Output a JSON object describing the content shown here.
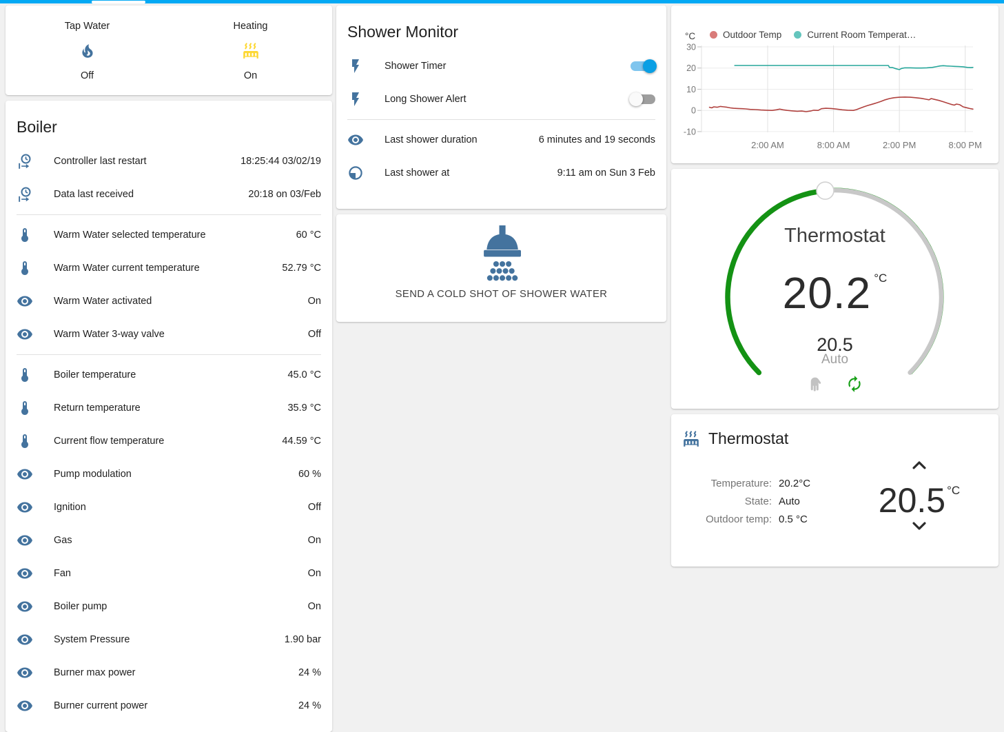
{
  "header": {
    "accent_color": "#03a9f4"
  },
  "colors": {
    "icon": "#44739e",
    "icon_active": "#fdd835",
    "toggle_on": "#0a9fe4",
    "slider_green": "#149214",
    "outdoor_line": "#b0413e",
    "room_line": "#26a69a"
  },
  "glance": {
    "items": [
      {
        "label": "Tap Water",
        "icon": "fire-icon",
        "state": "Off"
      },
      {
        "label": "Heating",
        "icon": "radiator-icon",
        "state": "On"
      }
    ]
  },
  "boiler": {
    "title": "Boiler",
    "rows": [
      {
        "icon": "clock-start-icon",
        "label": "Controller last restart",
        "value": "18:25:44 03/02/19"
      },
      {
        "icon": "clock-start-icon",
        "label": "Data last received",
        "value": "20:18 on 03/Feb"
      },
      {
        "icon": "thermometer-icon",
        "label": "Warm Water selected temperature",
        "value": "60 °C"
      },
      {
        "icon": "thermometer-icon",
        "label": "Warm Water current temperature",
        "value": "52.79 °C"
      },
      {
        "icon": "eye-icon",
        "label": "Warm Water activated",
        "value": "On"
      },
      {
        "icon": "eye-icon",
        "label": "Warm Water 3-way valve",
        "value": "Off"
      },
      {
        "icon": "thermometer-icon",
        "label": "Boiler temperature",
        "value": "45.0 °C"
      },
      {
        "icon": "thermometer-icon",
        "label": "Return temperature",
        "value": "35.9 °C"
      },
      {
        "icon": "thermometer-icon",
        "label": "Current flow temperature",
        "value": "44.59 °C"
      },
      {
        "icon": "eye-icon",
        "label": "Pump modulation",
        "value": "60 %"
      },
      {
        "icon": "eye-icon",
        "label": "Ignition",
        "value": "Off"
      },
      {
        "icon": "eye-icon",
        "label": "Gas",
        "value": "On"
      },
      {
        "icon": "eye-icon",
        "label": "Fan",
        "value": "On"
      },
      {
        "icon": "eye-icon",
        "label": "Boiler pump",
        "value": "On"
      },
      {
        "icon": "eye-icon",
        "label": "System Pressure",
        "value": "1.90 bar"
      },
      {
        "icon": "eye-icon",
        "label": "Burner max power",
        "value": "24 %"
      },
      {
        "icon": "eye-icon",
        "label": "Burner current power",
        "value": "24 %"
      }
    ]
  },
  "shower": {
    "title": "Shower Monitor",
    "toggles": [
      {
        "icon": "flash-icon",
        "label": "Shower Timer",
        "state": "on"
      },
      {
        "icon": "flash-icon",
        "label": "Long Shower Alert",
        "state": "off"
      }
    ],
    "info": [
      {
        "icon": "eye-icon",
        "label": "Last shower duration",
        "value": "6 minutes and 19 seconds"
      },
      {
        "icon": "clock-icon",
        "label": "Last shower at",
        "value": "9:11 am on Sun 3 Feb"
      }
    ],
    "action": "SEND A COLD SHOT OF SHOWER WATER"
  },
  "history": {
    "chart_data": {
      "type": "line",
      "title": "",
      "ylabel": "°C",
      "xlabel": "",
      "grid": true,
      "legend_position": "top",
      "xlim": [
        -4.2,
        20.9
      ],
      "ylim": [
        -10,
        30
      ],
      "x_unit": "hours, 0 = midnight",
      "x_ticks": [
        2,
        8,
        14,
        20
      ],
      "x_tick_labels": [
        "2:00 AM",
        "8:00 AM",
        "2:00 PM",
        "8:00 PM"
      ],
      "y_ticks": [
        30,
        20,
        10,
        0,
        -10
      ],
      "series": [
        {
          "name": "Outdoor Temp",
          "color": "#b0413e",
          "legend_dot_color": "#d97b79",
          "points": [
            [
              -3.3,
              1.5
            ],
            [
              -3.1,
              1.2
            ],
            [
              -2.9,
              1.7
            ],
            [
              -2.6,
              1.5
            ],
            [
              -2.3,
              1.9
            ],
            [
              -2.0,
              1.7
            ],
            [
              -1.7,
              1.5
            ],
            [
              -1.4,
              1.2
            ],
            [
              -1.1,
              1.0
            ],
            [
              -0.7,
              0.9
            ],
            [
              -0.3,
              0.8
            ],
            [
              0.0,
              0.7
            ],
            [
              0.4,
              0.5
            ],
            [
              0.9,
              0.4
            ],
            [
              1.4,
              0.2
            ],
            [
              1.9,
              0.1
            ],
            [
              2.4,
              0.0
            ],
            [
              2.8,
              0.3
            ],
            [
              3.1,
              0.6
            ],
            [
              3.4,
              0.3
            ],
            [
              3.8,
              0.0
            ],
            [
              4.2,
              -0.2
            ],
            [
              4.7,
              -0.4
            ],
            [
              5.1,
              -0.3
            ],
            [
              5.5,
              -0.6
            ],
            [
              5.9,
              -0.3
            ],
            [
              6.2,
              0.1
            ],
            [
              6.6,
              0.0
            ],
            [
              6.9,
              0.8
            ],
            [
              7.3,
              1.0
            ],
            [
              7.8,
              0.9
            ],
            [
              8.3,
              0.6
            ],
            [
              8.8,
              0.3
            ],
            [
              9.3,
              0.1
            ],
            [
              9.8,
              0.0
            ],
            [
              10.1,
              0.4
            ],
            [
              10.4,
              1.0
            ],
            [
              10.8,
              1.8
            ],
            [
              11.1,
              2.3
            ],
            [
              11.5,
              2.9
            ],
            [
              11.9,
              3.5
            ],
            [
              12.3,
              4.2
            ],
            [
              12.7,
              5.0
            ],
            [
              13.1,
              5.6
            ],
            [
              13.5,
              6.0
            ],
            [
              14.0,
              6.2
            ],
            [
              14.5,
              6.3
            ],
            [
              15.0,
              6.2
            ],
            [
              15.5,
              6.0
            ],
            [
              16.0,
              5.7
            ],
            [
              16.4,
              5.3
            ],
            [
              16.7,
              5.0
            ],
            [
              16.9,
              5.6
            ],
            [
              17.2,
              5.2
            ],
            [
              17.6,
              4.7
            ],
            [
              18.0,
              4.1
            ],
            [
              18.4,
              3.4
            ],
            [
              18.7,
              2.9
            ],
            [
              19.0,
              2.5
            ],
            [
              19.2,
              3.0
            ],
            [
              19.5,
              2.7
            ],
            [
              19.8,
              1.7
            ],
            [
              20.1,
              1.3
            ],
            [
              20.4,
              0.9
            ],
            [
              20.7,
              0.6
            ]
          ]
        },
        {
          "name": "Current Room Temperat…",
          "color": "#26a69a",
          "legend_dot_color": "#64c5bd",
          "points": [
            [
              -1.0,
              21.2
            ],
            [
              13.0,
              21.2
            ],
            [
              13.1,
              20.3
            ],
            [
              13.4,
              20.2
            ],
            [
              13.6,
              19.8
            ],
            [
              13.9,
              19.4
            ],
            [
              14.0,
              19.3
            ],
            [
              14.2,
              19.8
            ],
            [
              14.5,
              20.1
            ],
            [
              15.0,
              20.1
            ],
            [
              15.5,
              20.0
            ],
            [
              16.0,
              20.0
            ],
            [
              16.5,
              20.1
            ],
            [
              17.0,
              20.3
            ],
            [
              17.4,
              20.7
            ],
            [
              17.7,
              21.0
            ],
            [
              18.0,
              21.1
            ],
            [
              18.3,
              21.0
            ],
            [
              18.7,
              20.9
            ],
            [
              19.0,
              20.8
            ],
            [
              19.4,
              20.7
            ],
            [
              19.8,
              20.6
            ],
            [
              20.2,
              20.3
            ],
            [
              20.5,
              20.2
            ],
            [
              20.7,
              20.3
            ]
          ]
        }
      ]
    }
  },
  "dial": {
    "title": "Thermostat",
    "current": "20.2",
    "unit": "°C",
    "target": "20.5",
    "mode": "Auto"
  },
  "thermostat": {
    "title": "Thermostat",
    "attrs": [
      {
        "label": "Temperature:",
        "value": "20.2°C"
      },
      {
        "label": "State:",
        "value": "Auto"
      },
      {
        "label": "Outdoor temp:",
        "value": "0.5 °C"
      }
    ],
    "target": "20.5",
    "unit": "°C"
  }
}
